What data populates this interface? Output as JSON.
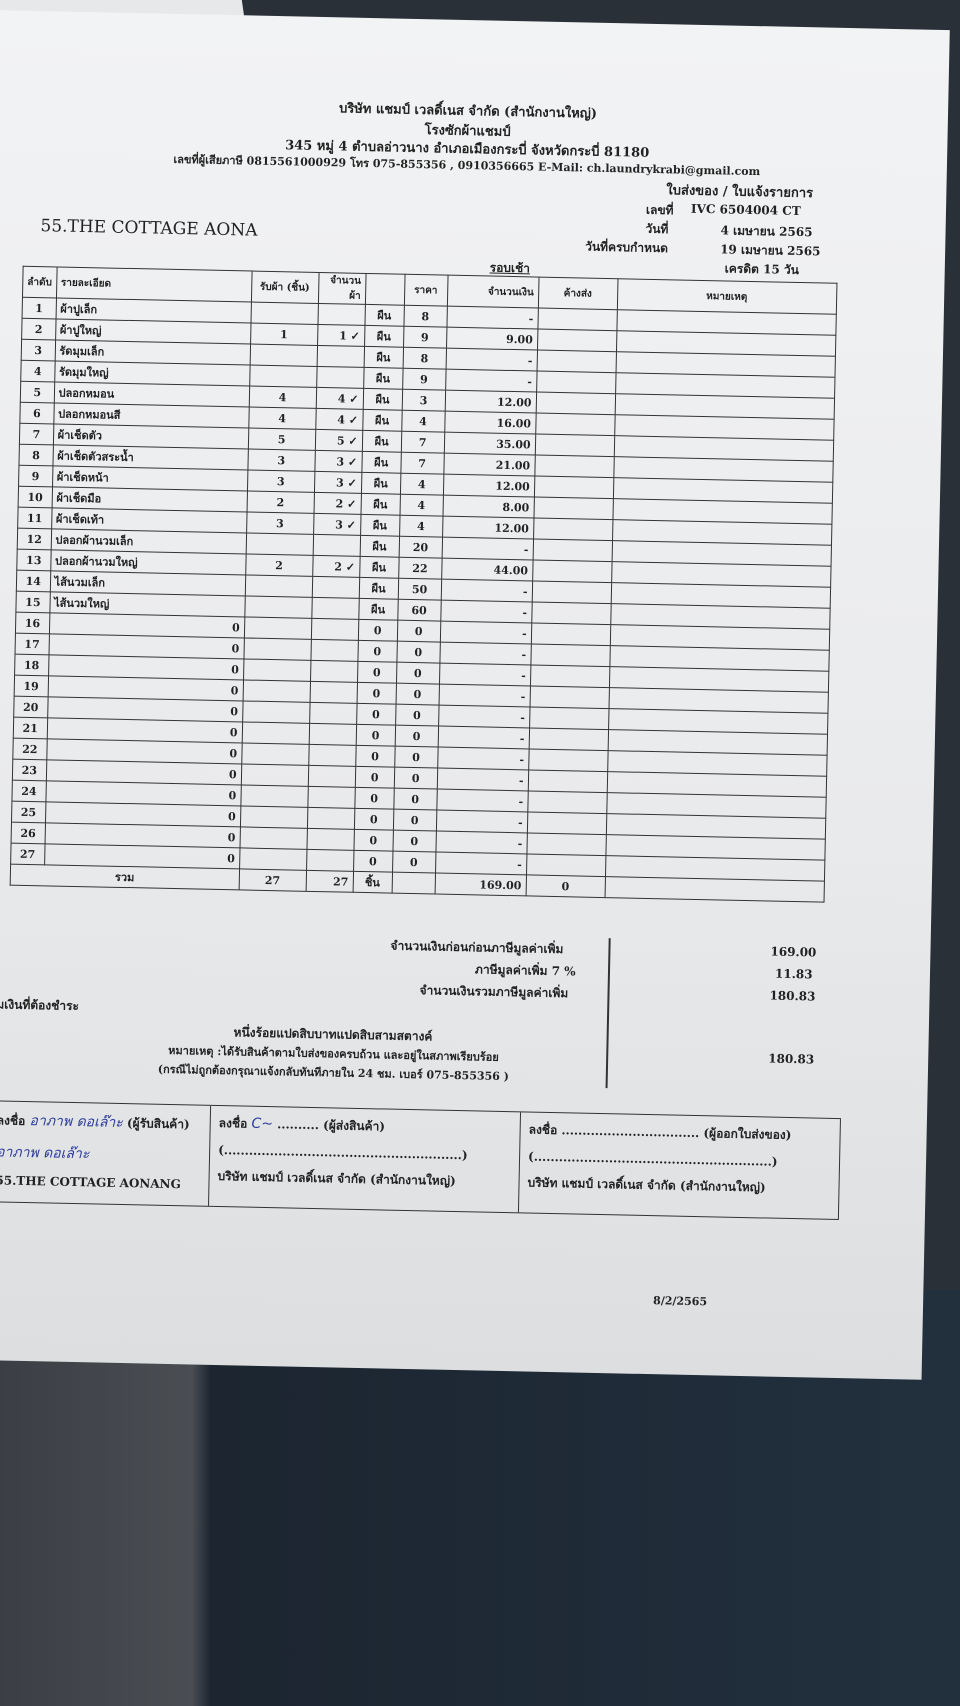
{
  "header": {
    "company": "บริษัท แชมป์ เวลดิ์เนส จำกัด (สำนักงานใหญ่)",
    "subtitle": "โรงซักผ้าแชมป์",
    "address": "345 หมู่ 4 ตำบลอ่าวนาง อำเภอเมืองกระบี่ จังหวัดกระบี่ 81180",
    "contact": "เลขที่ผู้เสียภาษี 0815561000929 โทร 075-855356 , 0910356665 E-Mail: ch.laundrykrabi@gmail.com",
    "doc_type": "ใบส่งของ / ใบแจ้งรายการ",
    "doc_no_label": "เลขที่",
    "doc_no": "IVC 6504004 CT",
    "date_label": "วันที่",
    "date": "4 เมษายน 2565",
    "due_label": "วันที่ครบกำหนด",
    "due": "19 เมษายน 2565",
    "credit": "เครดิต 15 วัน",
    "round": "รอบเช้า"
  },
  "customer": "55.THE COTTAGE AONA",
  "table": {
    "columns": [
      "ลำดับ",
      "รายละเอียด",
      "รับผ้า (ชิ้น)",
      "จำนวนผ้า",
      "",
      "ราคา",
      "จำนวนเงิน",
      "ค้างส่ง",
      "หมายเหตุ"
    ],
    "rows": [
      [
        "1",
        "ผ้าปูเล็ก",
        "",
        "",
        "ผืน",
        "8",
        "-",
        "",
        ""
      ],
      [
        "2",
        "ผ้าปูใหญ่",
        "1",
        "1 ✓",
        "ผืน",
        "9",
        "9.00",
        "",
        ""
      ],
      [
        "3",
        "รัดมุมเล็ก",
        "",
        "",
        "ผืน",
        "8",
        "-",
        "",
        ""
      ],
      [
        "4",
        "รัดมุมใหญ่",
        "",
        "",
        "ผืน",
        "9",
        "-",
        "",
        ""
      ],
      [
        "5",
        "ปลอกหมอน",
        "4",
        "4 ✓",
        "ผืน",
        "3",
        "12.00",
        "",
        ""
      ],
      [
        "6",
        "ปลอกหมอนสี",
        "4",
        "4 ✓",
        "ผืน",
        "4",
        "16.00",
        "",
        ""
      ],
      [
        "7",
        "ผ้าเช็ดตัว",
        "5",
        "5 ✓",
        "ผืน",
        "7",
        "35.00",
        "",
        ""
      ],
      [
        "8",
        "ผ้าเช็ดตัวสระน้ำ",
        "3",
        "3 ✓",
        "ผืน",
        "7",
        "21.00",
        "",
        ""
      ],
      [
        "9",
        "ผ้าเช็ดหน้า",
        "3",
        "3 ✓",
        "ผืน",
        "4",
        "12.00",
        "",
        ""
      ],
      [
        "10",
        "ผ้าเช็ดมือ",
        "2",
        "2 ✓",
        "ผืน",
        "4",
        "8.00",
        "",
        ""
      ],
      [
        "11",
        "ผ้าเช็ดเท้า",
        "3",
        "3 ✓",
        "ผืน",
        "4",
        "12.00",
        "",
        ""
      ],
      [
        "12",
        "ปลอกผ้านวมเล็ก",
        "",
        "",
        "ผืน",
        "20",
        "-",
        "",
        ""
      ],
      [
        "13",
        "ปลอกผ้านวมใหญ่",
        "2",
        "2 ✓",
        "ผืน",
        "22",
        "44.00",
        "",
        ""
      ],
      [
        "14",
        "ไส้นวมเล็ก",
        "",
        "",
        "ผืน",
        "50",
        "-",
        "",
        ""
      ],
      [
        "15",
        "ไส้นวมใหญ่",
        "",
        "",
        "ผืน",
        "60",
        "-",
        "",
        ""
      ],
      [
        "16",
        "0",
        "",
        "",
        "0",
        "0",
        "-",
        "",
        ""
      ],
      [
        "17",
        "0",
        "",
        "",
        "0",
        "0",
        "-",
        "",
        ""
      ],
      [
        "18",
        "0",
        "",
        "",
        "0",
        "0",
        "-",
        "",
        ""
      ],
      [
        "19",
        "0",
        "",
        "",
        "0",
        "0",
        "-",
        "",
        ""
      ],
      [
        "20",
        "0",
        "",
        "",
        "0",
        "0",
        "-",
        "",
        ""
      ],
      [
        "21",
        "0",
        "",
        "",
        "0",
        "0",
        "-",
        "",
        ""
      ],
      [
        "22",
        "0",
        "",
        "",
        "0",
        "0",
        "-",
        "",
        ""
      ],
      [
        "23",
        "0",
        "",
        "",
        "0",
        "0",
        "-",
        "",
        ""
      ],
      [
        "24",
        "0",
        "",
        "",
        "0",
        "0",
        "-",
        "",
        ""
      ],
      [
        "25",
        "0",
        "",
        "",
        "0",
        "0",
        "-",
        "",
        ""
      ],
      [
        "26",
        "0",
        "",
        "",
        "0",
        "0",
        "-",
        "",
        ""
      ],
      [
        "27",
        "0",
        "",
        "",
        "0",
        "0",
        "-",
        "",
        ""
      ]
    ],
    "total": {
      "label": "รวม",
      "received": "27",
      "count": "27",
      "unit": "ชิ้น",
      "amount": "169.00",
      "pending": "0"
    }
  },
  "summary": {
    "pre_vat_label": "จำนวนเงินก่อนก่อนภาษีมูลค่าเพิ่ม",
    "pre_vat": "169.00",
    "vat_label": "ภาษีมูลค่าเพิ่ม 7 %",
    "vat": "11.83",
    "total_label": "จำนวนเงินรวมภาษีมูลค่าเพิ่ม",
    "total": "180.83",
    "payable_label": "รวมเงินที่ต้องชำระ",
    "payable": "180.83",
    "in_words": "หนึ่งร้อยแปดสิบบาทแปดสิบสามสตางค์",
    "note": "หมายเหตุ :ได้รับสินค้าตามใบส่งของครบถ้วน และอยู่ในสภาพเรียบร้อย",
    "note2": "(กรณีไม่ถูกต้องกรุณาแจ้งกลับทันทีภายใน 24 ชม. เบอร์ 075-855356 )"
  },
  "signatures": [
    {
      "label": "ลงชื่อ",
      "role": "(ผู้รับสินค้า)",
      "signed": "อาภาพ ดอเล๊าะ",
      "printed": "อาภาพ ดอเล๊าะ",
      "org": "55.THE COTTAGE AONANG"
    },
    {
      "label": "ลงชื่อ",
      "role": "(ผู้ส่งสินค้า)",
      "signed": "C~",
      "org": "บริษัท แชมป์ เวลดิ์เนส จำกัด (สำนักงานใหญ่)"
    },
    {
      "label": "ลงชื่อ",
      "role": "(ผู้ออกใบส่งของ)",
      "org": "บริษัท แชมป์ เวลดิ์เนส จำกัด (สำนักงานใหญ่)"
    }
  ],
  "footer_date": "8/2/2565"
}
